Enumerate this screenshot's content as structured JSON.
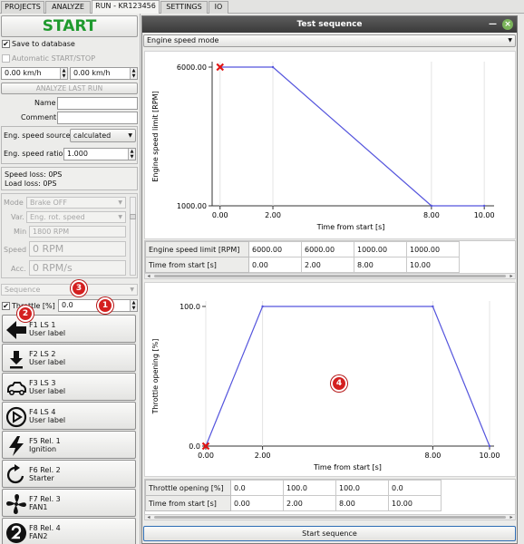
{
  "tabs": [
    {
      "label": "PROJECTS"
    },
    {
      "label": "ANALYZE"
    },
    {
      "label": "RUN - KR123456"
    },
    {
      "label": "SETTINGS"
    },
    {
      "label": "IO"
    }
  ],
  "left": {
    "start_label": "START",
    "save_to_db": "Save to database",
    "auto_start_stop": "Automatic START/STOP",
    "speed1": "0.00 km/h",
    "speed2": "0.00 km/h",
    "analyze_last_run": "ANALYZE LAST RUN",
    "name_label": "Name",
    "name_value": "",
    "comment_label": "Comment",
    "comment_value": "",
    "eng_speed_source_label": "Eng. speed source",
    "eng_speed_source_value": "calculated",
    "eng_speed_ratio_label": "Eng. speed ratio",
    "eng_speed_ratio_value": "1.000",
    "speed_loss": "Speed loss: 0PS",
    "load_loss": "Load loss: 0PS",
    "mode_label": "Mode",
    "mode_value": "Brake OFF",
    "var_label": "Var.",
    "var_value": "Eng. rot. speed",
    "min_label": "Min",
    "min_value": "1800 RPM",
    "speed_label": "Speed",
    "speed_value": "0 RPM",
    "acc_label": "Acc.",
    "acc_value": "0 RPM/s",
    "sequence_value": "Sequence",
    "throttle_label": "Throttle [%]",
    "throttle_value": "0.0",
    "functions": [
      {
        "name": "F1 LS 1",
        "sub": "User label",
        "icon": "arrow-left-icon"
      },
      {
        "name": "F2 LS 2",
        "sub": "User label",
        "icon": "arrow-down-bar-icon"
      },
      {
        "name": "F3 LS 3",
        "sub": "User label",
        "icon": "car-horn-icon"
      },
      {
        "name": "F4 LS 4",
        "sub": "User label",
        "icon": "play-circle-icon"
      },
      {
        "name": "F5 Rel. 1",
        "sub": "Ignition",
        "icon": "lightning-icon"
      },
      {
        "name": "F6 Rel. 2",
        "sub": "Starter",
        "icon": "restart-icon"
      },
      {
        "name": "F7 Rel. 3",
        "sub": "FAN1",
        "icon": "fan-icon"
      },
      {
        "name": "F8 Rel. 4",
        "sub": "FAN2",
        "icon": "number-2-icon"
      }
    ]
  },
  "badges": [
    "1",
    "2",
    "3",
    "4"
  ],
  "dialog": {
    "title": "Test sequence",
    "mode_select": "Engine speed mode",
    "start_button": "Start sequence",
    "accent": "#2e6db4",
    "table1": {
      "rows": [
        {
          "header": "Engine speed limit [RPM]",
          "cells": [
            "6000.00",
            "6000.00",
            "1000.00",
            "1000.00"
          ]
        },
        {
          "header": "Time from start [s]",
          "cells": [
            "0.00",
            "2.00",
            "8.00",
            "10.00"
          ]
        }
      ]
    },
    "table2": {
      "rows": [
        {
          "header": "Throttle opening [%]",
          "cells": [
            "0.0",
            "100.0",
            "100.0",
            "0.0"
          ]
        },
        {
          "header": "Time from start [s]",
          "cells": [
            "0.00",
            "2.00",
            "8.00",
            "10.00"
          ]
        }
      ]
    }
  },
  "chart_data": [
    {
      "type": "line",
      "xlabel": "Time from start [s]",
      "ylabel": "Engine speed limit [RPM]",
      "x_ticks": [
        "0.00",
        "2.00",
        "8.00",
        "10.00"
      ],
      "y_ticks": [
        "6000.00",
        "1000.00"
      ],
      "xlim": [
        -0.3,
        10.2
      ],
      "ylim": [
        1000,
        6000
      ],
      "series": [
        {
          "x": [
            0,
            2,
            8,
            10
          ],
          "y": [
            6000,
            6000,
            1000,
            1000
          ],
          "color": "#5555dd"
        }
      ],
      "marker": {
        "x": 0,
        "y": 6000,
        "symbol": "x",
        "color": "#e01515"
      }
    },
    {
      "type": "line",
      "xlabel": "Time from start [s]",
      "ylabel": "Throttle opening [%]",
      "x_ticks": [
        "0.00",
        "2.00",
        "8.00",
        "10.00"
      ],
      "y_ticks": [
        "100.0",
        "0.0"
      ],
      "xlim": [
        0,
        10
      ],
      "ylim": [
        0,
        100
      ],
      "series": [
        {
          "x": [
            0,
            2,
            8,
            10
          ],
          "y": [
            0,
            100,
            100,
            0
          ],
          "color": "#5555dd"
        }
      ],
      "marker": {
        "x": 0,
        "y": 0,
        "symbol": "x",
        "color": "#e01515"
      }
    }
  ]
}
